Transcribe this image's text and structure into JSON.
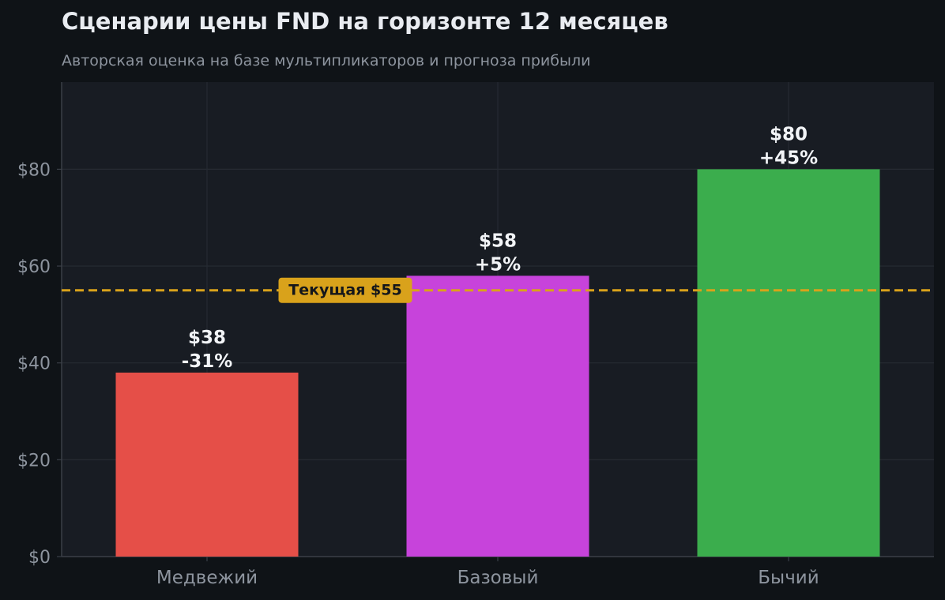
{
  "chart_data": {
    "type": "bar",
    "title": "Сценарии цены FND на горизонте 12 месяцев",
    "subtitle": "Авторская оценка на базе мультипликаторов и прогноза прибыли",
    "categories": [
      "Медвежий",
      "Базовый",
      "Бычий"
    ],
    "values": [
      38,
      58,
      80
    ],
    "value_labels": [
      "$38",
      "$58",
      "$80"
    ],
    "change_labels": [
      "-31%",
      "+5%",
      "+45%"
    ],
    "bar_colors": [
      "#e54f48",
      "#c743db",
      "#3bad4d"
    ],
    "ylim": [
      0,
      98
    ],
    "yticks": [
      0,
      20,
      40,
      60,
      80
    ],
    "ytick_labels": [
      "$0",
      "$20",
      "$40",
      "$60",
      "$80"
    ],
    "reference_line": {
      "value": 55,
      "label": "Текущая $55",
      "color": "#d9a21b"
    },
    "grid": true,
    "xlabel": "",
    "ylabel": ""
  },
  "colors": {
    "page_background": "#0f1317",
    "plot_background": "#181c23",
    "grid": "#262b33",
    "axis": "#3a3f47",
    "tick_text": "#8d949e",
    "annotation_text": "#f2f4f7"
  }
}
